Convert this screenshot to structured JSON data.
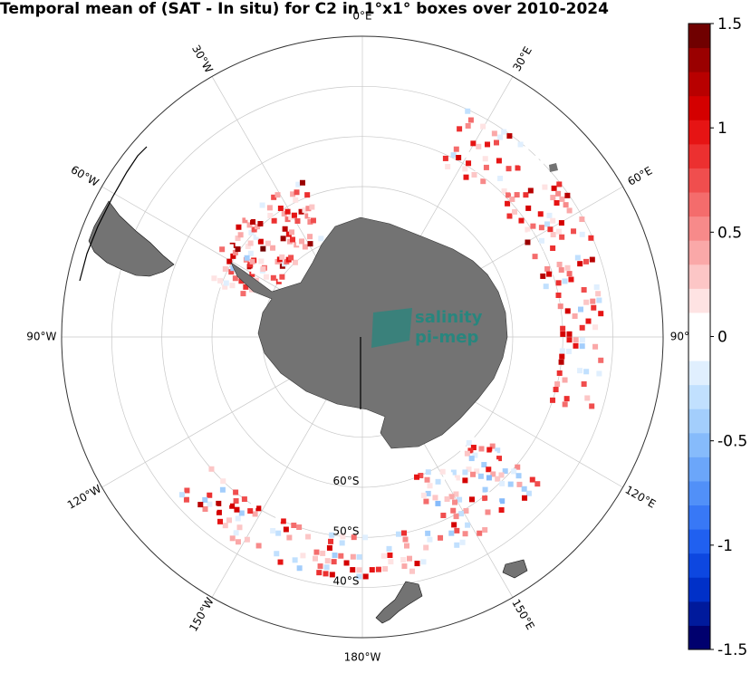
{
  "title": "Temporal mean of (SAT - In situ) for C2 in 1°x1° boxes over 2010-2024",
  "projection": "south-polar-stereographic",
  "longitude_labels": [
    {
      "lon": 0,
      "text": "0°E"
    },
    {
      "lon": 30,
      "text": "30°E"
    },
    {
      "lon": 60,
      "text": "60°E"
    },
    {
      "lon": 90,
      "text": "90°E"
    },
    {
      "lon": 120,
      "text": "120°E"
    },
    {
      "lon": 150,
      "text": "150°E"
    },
    {
      "lon": 180,
      "text": "180°W"
    },
    {
      "lon": -150,
      "text": "150°W"
    },
    {
      "lon": -120,
      "text": "120°W"
    },
    {
      "lon": -90,
      "text": "90°W"
    },
    {
      "lon": -60,
      "text": "60°W"
    },
    {
      "lon": -30,
      "text": "30°W"
    }
  ],
  "latitude_labels": [
    {
      "lat": -60,
      "text": "60°S"
    },
    {
      "lat": -50,
      "text": "50°S"
    },
    {
      "lat": -40,
      "text": "40°S"
    }
  ],
  "colorbar": {
    "min": -1.5,
    "max": 1.5,
    "ticks": [
      {
        "value": 1.5,
        "label": "1.5"
      },
      {
        "value": 1,
        "label": "1"
      },
      {
        "value": 0.5,
        "label": "0.5"
      },
      {
        "value": 0,
        "label": "0"
      },
      {
        "value": -0.5,
        "label": "-0.5"
      },
      {
        "value": -1,
        "label": "-1"
      },
      {
        "value": -1.5,
        "label": "-1.5"
      }
    ],
    "colors": [
      "#00006e",
      "#001a9c",
      "#0030c8",
      "#0d47e0",
      "#2060f0",
      "#3878f6",
      "#5190f8",
      "#6ba6fa",
      "#86bbfb",
      "#a3cefc",
      "#c1e0fe",
      "#e0effe",
      "#ffffff",
      "#ffffff",
      "#fee3e3",
      "#fcc6c6",
      "#faa8a8",
      "#f78a8a",
      "#f46c6c",
      "#f04e4e",
      "#ec3030",
      "#e61414",
      "#d40000",
      "#b80000",
      "#9a0000",
      "#700000"
    ]
  },
  "watermark": {
    "line1": "salinity",
    "line2": "pi-mep"
  },
  "chart_data": {
    "type": "heatmap",
    "title": "Temporal mean of (SAT - In situ) for C2 in 1°x1° boxes over 2010-2024",
    "variable": "SAT - In situ",
    "value_range": [
      -1.5,
      1.5
    ],
    "regions": [
      {
        "lon_range": [
          -58,
          -20
        ],
        "lat_range": [
          -70,
          -56
        ],
        "mean_value": 0.6
      },
      {
        "lon_range": [
          -70,
          -55
        ],
        "lat_range": [
          -66,
          -58
        ],
        "mean_value": 0.4
      },
      {
        "lon_range": [
          25,
          75
        ],
        "lat_range": [
          -52,
          -40
        ],
        "mean_value": 0.5
      },
      {
        "lon_range": [
          78,
          110
        ],
        "lat_range": [
          -50,
          -42
        ],
        "mean_value": 0.4
      },
      {
        "lon_range": [
          130,
          160
        ],
        "lat_range": [
          -60,
          -44
        ],
        "mean_value": 0.3
      },
      {
        "lon_range": [
          160,
          230
        ],
        "lat_range": [
          -50,
          -42
        ],
        "mean_value": 0.4
      }
    ]
  }
}
